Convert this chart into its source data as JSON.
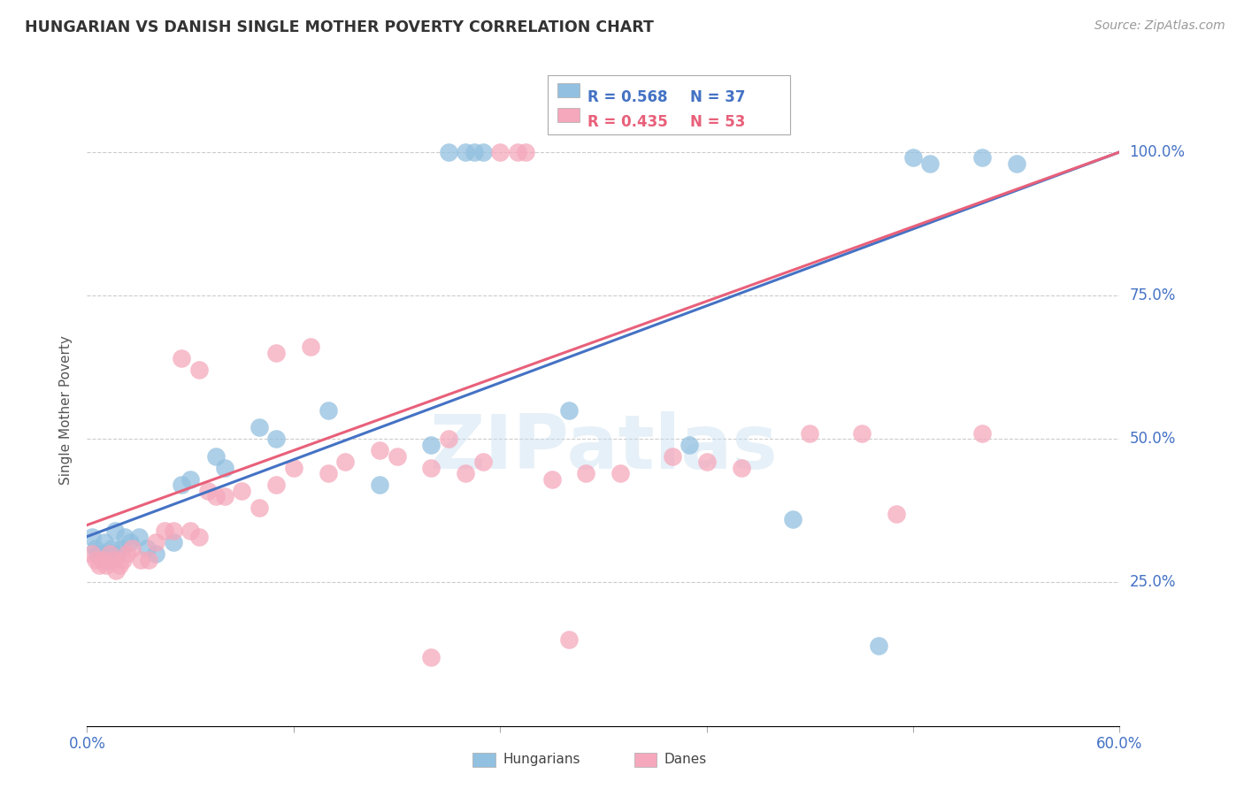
{
  "title": "HUNGARIAN VS DANISH SINGLE MOTHER POVERTY CORRELATION CHART",
  "source": "Source: ZipAtlas.com",
  "ylabel": "Single Mother Poverty",
  "legend_blue_r": "R = 0.568",
  "legend_blue_n": "N = 37",
  "legend_pink_r": "R = 0.435",
  "legend_pink_n": "N = 53",
  "legend_label_blue": "Hungarians",
  "legend_label_pink": "Danes",
  "blue_color": "#92c0e0",
  "pink_color": "#f5a8bc",
  "trendline_blue": "#4472c4",
  "trendline_pink": "#e8607a",
  "watermark_text": "ZIPatlas",
  "blue_points": [
    [
      0.3,
      33
    ],
    [
      0.5,
      31
    ],
    [
      0.6,
      30
    ],
    [
      0.8,
      30
    ],
    [
      1.0,
      32
    ],
    [
      1.2,
      29
    ],
    [
      1.4,
      31
    ],
    [
      1.6,
      34
    ],
    [
      1.8,
      30
    ],
    [
      2.0,
      31
    ],
    [
      2.2,
      33
    ],
    [
      2.5,
      32
    ],
    [
      3.0,
      33
    ],
    [
      3.5,
      31
    ],
    [
      4.0,
      30
    ],
    [
      5.0,
      32
    ],
    [
      5.5,
      42
    ],
    [
      6.0,
      43
    ],
    [
      7.5,
      47
    ],
    [
      8.0,
      45
    ],
    [
      10.0,
      52
    ],
    [
      11.0,
      50
    ],
    [
      14.0,
      55
    ],
    [
      17.0,
      42
    ],
    [
      20.0,
      49
    ],
    [
      21.0,
      100
    ],
    [
      22.0,
      100
    ],
    [
      22.5,
      100
    ],
    [
      23.0,
      100
    ],
    [
      28.0,
      55
    ],
    [
      35.0,
      49
    ],
    [
      41.0,
      36
    ],
    [
      46.0,
      14
    ],
    [
      52.0,
      99
    ],
    [
      54.0,
      98
    ],
    [
      48.0,
      99
    ],
    [
      49.0,
      98
    ]
  ],
  "pink_points": [
    [
      0.3,
      30
    ],
    [
      0.5,
      29
    ],
    [
      0.7,
      28
    ],
    [
      0.9,
      29
    ],
    [
      1.1,
      28
    ],
    [
      1.3,
      30
    ],
    [
      1.5,
      29
    ],
    [
      1.7,
      27
    ],
    [
      1.9,
      28
    ],
    [
      2.1,
      29
    ],
    [
      2.3,
      30
    ],
    [
      2.6,
      31
    ],
    [
      3.1,
      29
    ],
    [
      3.6,
      29
    ],
    [
      4.0,
      32
    ],
    [
      4.5,
      34
    ],
    [
      5.0,
      34
    ],
    [
      6.0,
      34
    ],
    [
      6.5,
      33
    ],
    [
      7.0,
      41
    ],
    [
      7.5,
      40
    ],
    [
      8.0,
      40
    ],
    [
      9.0,
      41
    ],
    [
      10.0,
      38
    ],
    [
      11.0,
      42
    ],
    [
      12.0,
      45
    ],
    [
      14.0,
      44
    ],
    [
      15.0,
      46
    ],
    [
      17.0,
      48
    ],
    [
      18.0,
      47
    ],
    [
      20.0,
      45
    ],
    [
      21.0,
      50
    ],
    [
      22.0,
      44
    ],
    [
      23.0,
      46
    ],
    [
      24.0,
      100
    ],
    [
      25.0,
      100
    ],
    [
      25.5,
      100
    ],
    [
      27.0,
      43
    ],
    [
      29.0,
      44
    ],
    [
      31.0,
      44
    ],
    [
      34.0,
      47
    ],
    [
      36.0,
      46
    ],
    [
      38.0,
      45
    ],
    [
      42.0,
      51
    ],
    [
      45.0,
      51
    ],
    [
      47.0,
      37
    ],
    [
      52.0,
      51
    ],
    [
      28.0,
      15
    ],
    [
      20.0,
      12
    ],
    [
      5.5,
      64
    ],
    [
      6.5,
      62
    ],
    [
      11.0,
      65
    ],
    [
      13.0,
      66
    ]
  ],
  "xmin": 0,
  "xmax": 60,
  "ymin": 0,
  "ymax": 110,
  "blue_x0": 0,
  "blue_y0": 33,
  "blue_x1": 60,
  "blue_y1": 100,
  "pink_x0": 0,
  "pink_y0": 35,
  "pink_x1": 60,
  "pink_y1": 100,
  "yticks": [
    25,
    50,
    75,
    100
  ],
  "xtick_positions": [
    0,
    12,
    24,
    36,
    48,
    60
  ],
  "xtick_labels_show": {
    "0": "0.0%",
    "60": "60.0%"
  }
}
